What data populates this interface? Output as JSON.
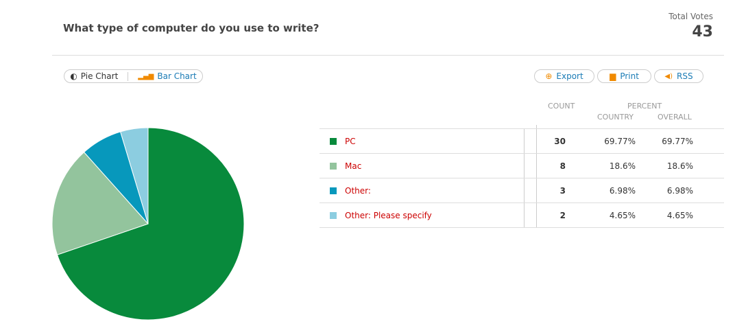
{
  "question": "What type of computer do you use to write?",
  "total_votes": {
    "label": "Total Votes",
    "value": "43"
  },
  "view_toggle": {
    "pie": "Pie Chart",
    "bar": "Bar Chart",
    "selected": "Pie Chart"
  },
  "actions": {
    "export": "Export",
    "print": "Print",
    "rss": "RSS"
  },
  "headers": {
    "count": "COUNT",
    "percent": "PERCENT",
    "country": "COUNTRY",
    "overall": "OVERALL"
  },
  "rows": [
    {
      "label": "PC",
      "count": "30",
      "country": "69.77%",
      "overall": "69.77%",
      "color": "#088a3c"
    },
    {
      "label": "Mac",
      "count": "8",
      "country": "18.6%",
      "overall": "18.6%",
      "color": "#93c49d"
    },
    {
      "label": "Other:",
      "count": "3",
      "country": "6.98%",
      "overall": "6.98%",
      "color": "#0798bc"
    },
    {
      "label": "Other: Please specify",
      "count": "2",
      "country": "4.65%",
      "overall": "4.65%",
      "color": "#8ccde0"
    }
  ],
  "chart_data": {
    "type": "pie",
    "categories": [
      "PC",
      "Mac",
      "Other:",
      "Other: Please specify"
    ],
    "values": [
      30,
      8,
      3,
      2
    ],
    "colors": [
      "#088a3c",
      "#93c49d",
      "#0798bc",
      "#8ccde0"
    ]
  }
}
